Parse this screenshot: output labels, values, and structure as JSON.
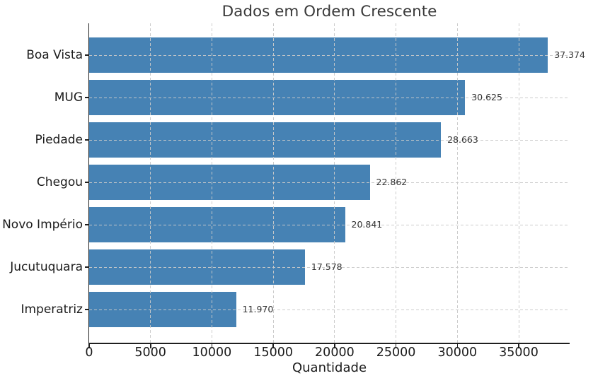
{
  "chart_data": {
    "type": "bar",
    "orientation": "horizontal",
    "title": "Dados em Ordem Crescente",
    "xlabel": "Quantidade",
    "ylabel": "",
    "categories": [
      "Boa Vista",
      "MUG",
      "Piedade",
      "Chegou",
      "Novo Império",
      "Jucutuquara",
      "Imperatriz"
    ],
    "values": [
      37374,
      30625,
      28663,
      22862,
      20841,
      17578,
      11970
    ],
    "value_labels": [
      "37.374",
      "30.625",
      "28.663",
      "22.862",
      "20.841",
      "17.578",
      "11.970"
    ],
    "x_ticks": [
      0,
      5000,
      10000,
      15000,
      20000,
      25000,
      30000,
      35000
    ],
    "x_tick_labels": [
      "0",
      "5000",
      "10000",
      "15000",
      "20000",
      "25000",
      "30000",
      "35000"
    ],
    "xlim": [
      0,
      39149
    ],
    "grid": true,
    "grid_style": "dashed",
    "legend_position": "none",
    "colors": {
      "bar": "#4682B4",
      "grid": "#c9c9c9",
      "spine": "#1f1f1f",
      "title": "#3a3a3a",
      "tick_label": "#1a1a1a",
      "value_label": "#333333",
      "background": "#ffffff"
    }
  }
}
